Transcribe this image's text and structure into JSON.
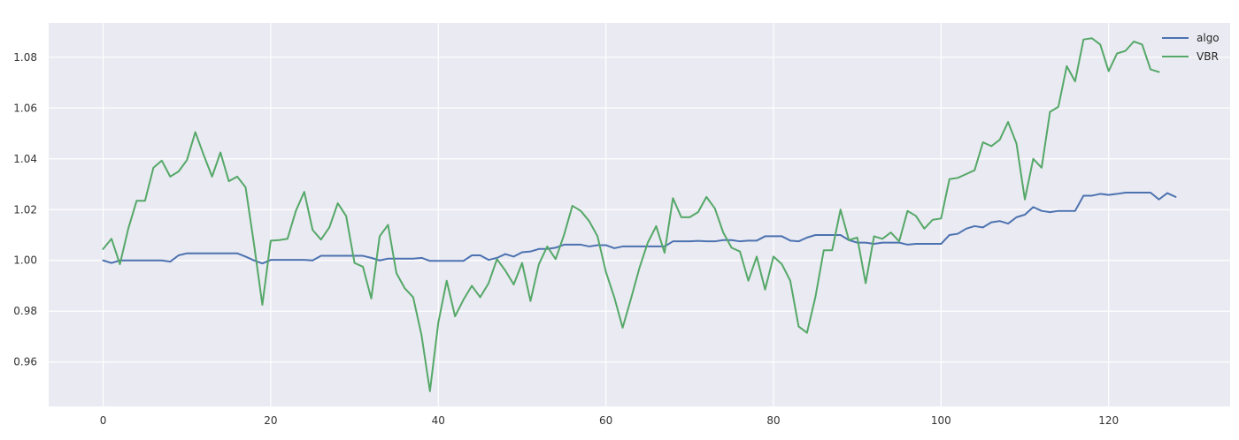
{
  "chart_data": {
    "type": "line",
    "title": "",
    "xlabel": "",
    "ylabel": "",
    "xlim": [
      -6.5,
      134.5
    ],
    "ylim": [
      0.9425,
      1.0935
    ],
    "xticks": [
      0,
      20,
      40,
      60,
      80,
      100,
      120
    ],
    "yticks": [
      0.96,
      0.98,
      1.0,
      1.02,
      1.04,
      1.06,
      1.08
    ],
    "xtick_labels": [
      "0",
      "20",
      "40",
      "60",
      "80",
      "100",
      "120"
    ],
    "ytick_labels": [
      "0.96",
      "0.98",
      "1.00",
      "1.02",
      "1.04",
      "1.06",
      "1.08"
    ],
    "grid": true,
    "legend_position": "top-right",
    "series": [
      {
        "name": "algo",
        "color": "#4c72b0",
        "x": [
          0,
          1,
          2,
          3,
          4,
          5,
          6,
          7,
          8,
          9,
          10,
          11,
          12,
          13,
          14,
          15,
          16,
          17,
          18,
          19,
          20,
          21,
          22,
          23,
          24,
          25,
          26,
          27,
          28,
          29,
          30,
          31,
          32,
          33,
          34,
          35,
          36,
          37,
          38,
          39,
          40,
          41,
          42,
          43,
          44,
          45,
          46,
          47,
          48,
          49,
          50,
          51,
          52,
          53,
          54,
          55,
          56,
          57,
          58,
          59,
          60,
          61,
          62,
          63,
          64,
          65,
          66,
          67,
          68,
          69,
          70,
          71,
          72,
          73,
          74,
          75,
          76,
          77,
          78,
          79,
          80,
          81,
          82,
          83,
          84,
          85,
          86,
          87,
          88,
          89,
          90,
          91,
          92,
          93,
          94,
          95,
          96,
          97,
          98,
          99,
          100,
          101,
          102,
          103,
          104,
          105,
          106,
          107,
          108,
          109,
          110,
          111,
          112,
          113,
          114,
          115,
          116,
          117,
          118,
          119,
          120,
          121,
          122,
          123,
          124,
          125,
          126,
          127,
          128
        ],
        "values": [
          1.0,
          0.999,
          1.0,
          1.0,
          1.0,
          1.0,
          1.0,
          1.0,
          0.9995,
          1.002,
          1.0028,
          1.0028,
          1.0028,
          1.0028,
          1.0028,
          1.0028,
          1.0028,
          1.0015,
          1.0,
          0.9988,
          1.0002,
          1.0002,
          1.0002,
          1.0002,
          1.0002,
          1.0,
          1.0018,
          1.0018,
          1.0018,
          1.0018,
          1.0018,
          1.0018,
          1.001,
          1.0,
          1.0007,
          1.0007,
          1.0007,
          1.0007,
          1.001,
          0.9998,
          0.9998,
          0.9998,
          0.9998,
          0.9998,
          1.002,
          1.002,
          1.0002,
          1.001,
          1.0025,
          1.0015,
          1.0032,
          1.0035,
          1.0045,
          1.0045,
          1.005,
          1.0062,
          1.0062,
          1.0062,
          1.0055,
          1.006,
          1.006,
          1.0048,
          1.0055,
          1.0055,
          1.0055,
          1.0055,
          1.0055,
          1.0055,
          1.0075,
          1.0075,
          1.0075,
          1.0077,
          1.0075,
          1.0075,
          1.008,
          1.008,
          1.0075,
          1.0078,
          1.0078,
          1.0095,
          1.0095,
          1.0095,
          1.0078,
          1.0075,
          1.009,
          1.01,
          1.01,
          1.01,
          1.01,
          1.008,
          1.007,
          1.007,
          1.0065,
          1.007,
          1.007,
          1.007,
          1.0062,
          1.0065,
          1.0065,
          1.0065,
          1.0065,
          1.01,
          1.0105,
          1.0125,
          1.0135,
          1.013,
          1.015,
          1.0155,
          1.0145,
          1.017,
          1.018,
          1.021,
          1.0195,
          1.019,
          1.0195,
          1.0195,
          1.0195,
          1.0255,
          1.0255,
          1.0262,
          1.0258,
          1.0262,
          1.0267,
          1.0267,
          1.0267,
          1.0267,
          1.024,
          1.0265,
          1.025
        ]
      },
      {
        "name": "VBR",
        "color": "#55a868",
        "x": [
          0,
          1,
          2,
          3,
          4,
          5,
          6,
          7,
          8,
          9,
          10,
          11,
          12,
          13,
          14,
          15,
          16,
          17,
          18,
          19,
          20,
          21,
          22,
          23,
          24,
          25,
          26,
          27,
          28,
          29,
          30,
          31,
          32,
          33,
          34,
          35,
          36,
          37,
          38,
          39,
          40,
          41,
          42,
          43,
          44,
          45,
          46,
          47,
          48,
          49,
          50,
          51,
          52,
          53,
          54,
          55,
          56,
          57,
          58,
          59,
          60,
          61,
          62,
          63,
          64,
          65,
          66,
          67,
          68,
          69,
          70,
          71,
          72,
          73,
          74,
          75,
          76,
          77,
          78,
          79,
          80,
          81,
          82,
          83,
          84,
          85,
          86,
          87,
          88,
          89,
          90,
          91,
          92,
          93,
          94,
          95,
          96,
          97,
          98,
          99,
          100,
          101,
          102,
          103,
          104,
          105,
          106,
          107,
          108,
          109,
          110,
          111,
          112,
          113,
          114,
          115,
          116,
          117,
          118,
          119,
          120,
          121,
          122,
          123,
          124,
          125,
          126
        ],
        "values": [
          1.0045,
          1.0085,
          0.9985,
          1.0125,
          1.0235,
          1.0235,
          1.0365,
          1.0393,
          1.033,
          1.035,
          1.0395,
          1.0505,
          1.0415,
          1.033,
          1.0425,
          1.0312,
          1.033,
          1.0288,
          1.0065,
          0.9825,
          1.0078,
          1.008,
          1.0085,
          1.0195,
          1.027,
          1.012,
          1.0082,
          1.013,
          1.0225,
          1.0175,
          0.999,
          0.9975,
          0.985,
          1.0095,
          1.014,
          0.995,
          0.989,
          0.9855,
          0.9705,
          0.9485,
          0.9755,
          0.992,
          0.978,
          0.9845,
          0.99,
          0.9855,
          0.991,
          1.0005,
          0.996,
          0.9905,
          0.999,
          0.984,
          0.9985,
          1.0055,
          1.0005,
          1.01,
          1.0215,
          1.0195,
          1.0155,
          1.0095,
          0.9955,
          0.9855,
          0.9735,
          0.985,
          0.997,
          1.007,
          1.0135,
          1.003,
          1.0245,
          1.017,
          1.017,
          1.019,
          1.025,
          1.0205,
          1.011,
          1.005,
          1.0035,
          0.992,
          1.0015,
          0.9885,
          1.0015,
          0.9985,
          0.992,
          0.974,
          0.9715,
          0.9855,
          1.004,
          1.004,
          1.02,
          1.008,
          1.009,
          0.991,
          1.0095,
          1.0085,
          1.011,
          1.0075,
          1.0195,
          1.0175,
          1.0125,
          1.016,
          1.0165,
          1.032,
          1.0325,
          1.034,
          1.0355,
          1.0465,
          1.045,
          1.0475,
          1.0545,
          1.046,
          1.024,
          1.04,
          1.0365,
          1.0585,
          1.0605,
          1.0765,
          1.0705,
          1.087,
          1.0875,
          1.085,
          1.0745,
          1.0815,
          1.0825,
          1.0862,
          1.085,
          1.0752,
          1.0742
        ]
      }
    ]
  }
}
